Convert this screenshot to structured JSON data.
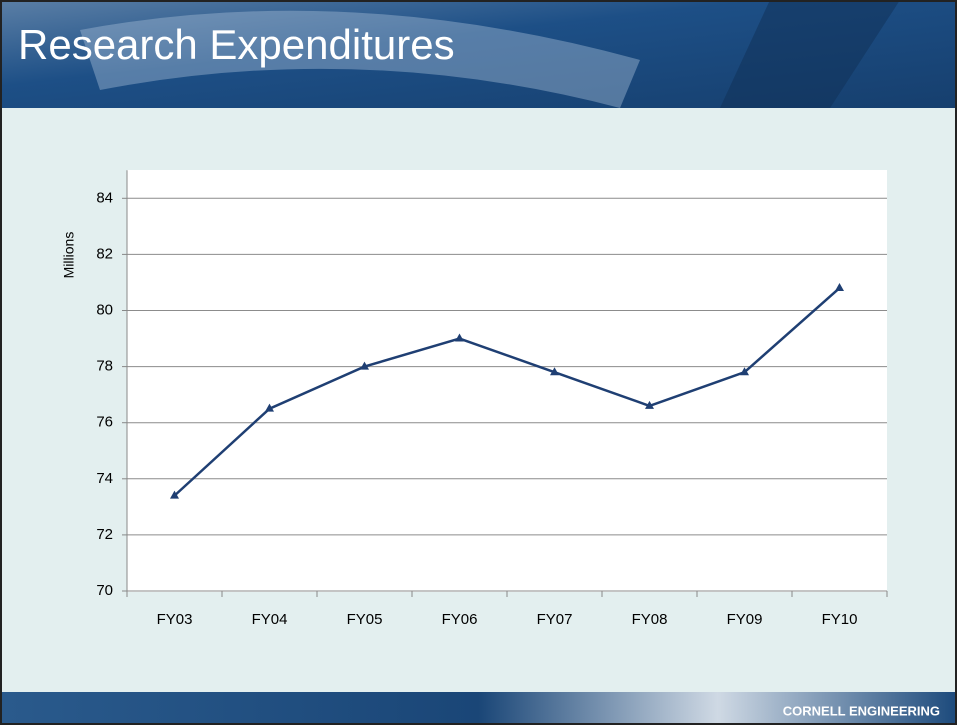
{
  "footer": "CORNELL ENGINEERING",
  "chart_data": {
    "type": "line",
    "title": "Research Expenditures",
    "y_label": "Millions",
    "categories": [
      "FY03",
      "FY04",
      "FY05",
      "FY06",
      "FY07",
      "FY08",
      "FY09",
      "FY10"
    ],
    "series": [
      {
        "name": "Research Expenditures",
        "color": "#1f3f73",
        "values": [
          73.4,
          76.5,
          78.0,
          79.0,
          77.8,
          76.6,
          77.8,
          80.8
        ]
      }
    ],
    "ylim": [
      70,
      85
    ],
    "yticks": [
      70,
      72,
      74,
      76,
      78,
      80,
      82,
      84
    ],
    "grid": true
  }
}
